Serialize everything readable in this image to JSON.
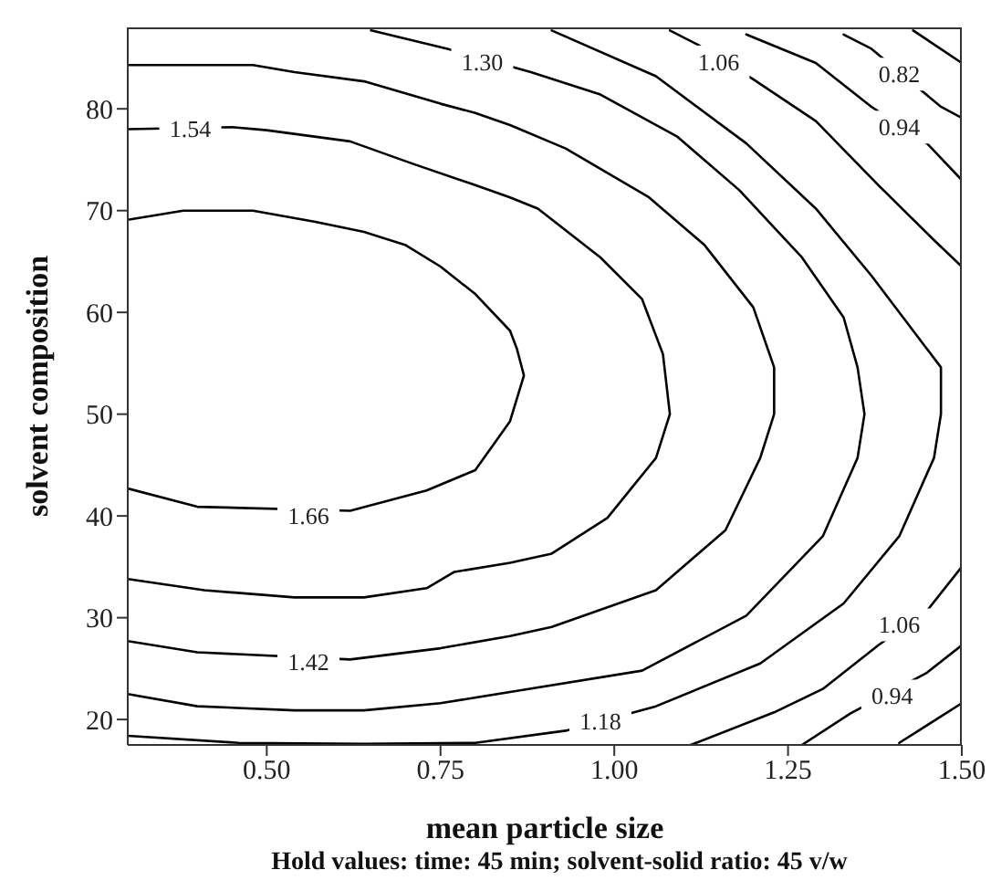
{
  "chart_data": {
    "type": "line",
    "xlabel": "mean particle size",
    "ylabel": "solvent composition",
    "xlim": [
      0.3,
      1.5
    ],
    "xticks": [
      {
        "value": 0.5,
        "label": "0.50"
      },
      {
        "value": 0.75,
        "label": "0.75"
      },
      {
        "value": 1.0,
        "label": "1.00"
      },
      {
        "value": 1.25,
        "label": "1.25"
      },
      {
        "value": 1.5,
        "label": "1.50"
      }
    ],
    "ylim": [
      17.5,
      88
    ],
    "yticks": [
      20,
      30,
      40,
      50,
      60,
      70,
      80
    ],
    "grid": false,
    "marker": "none",
    "line_style": "solid",
    "series": [
      {
        "color": "#000000",
        "x": [
          0.3,
          0.38,
          0.48,
          0.57,
          0.64,
          0.7,
          0.75,
          0.8,
          0.85,
          0.86,
          0.87,
          0.85,
          0.8,
          0.73,
          0.62,
          0.4,
          0.3
        ],
        "values": [
          69.1,
          70.0,
          70.0,
          68.9,
          67.9,
          66.6,
          64.5,
          61.8,
          58.2,
          56.4,
          53.8,
          49.3,
          44.5,
          42.5,
          40.5,
          40.9,
          42.7
        ]
      },
      {
        "color": "#000000",
        "x": [
          0.3,
          0.45,
          0.5,
          0.62,
          0.71,
          0.8,
          0.85,
          0.89,
          0.98,
          1.04,
          1.07,
          1.08,
          1.06,
          0.99,
          0.91,
          0.85,
          0.77,
          0.73,
          0.64,
          0.54,
          0.41,
          0.3
        ],
        "values": [
          78.0,
          78.2,
          77.9,
          76.8,
          74.6,
          72.5,
          71.3,
          70.2,
          65.4,
          61.3,
          55.9,
          50.0,
          45.7,
          39.8,
          36.3,
          35.4,
          34.5,
          32.9,
          32.0,
          32.0,
          32.7,
          33.8
        ]
      },
      {
        "color": "#000000",
        "x": [
          0.3,
          0.48,
          0.54,
          0.64,
          0.75,
          0.8,
          0.85,
          0.93,
          1.05,
          1.13,
          1.2,
          1.23,
          1.23,
          1.21,
          1.16,
          1.06,
          0.91,
          0.85,
          0.75,
          0.62,
          0.4,
          0.3
        ],
        "values": [
          84.3,
          84.3,
          83.6,
          82.7,
          80.5,
          79.6,
          78.4,
          76.1,
          71.3,
          66.6,
          60.5,
          54.6,
          50.0,
          45.7,
          38.6,
          32.7,
          29.1,
          28.2,
          27.0,
          25.9,
          26.6,
          27.7
        ]
      },
      {
        "color": "#000000",
        "x": [
          0.65,
          0.76,
          0.88,
          0.98,
          1.09,
          1.18,
          1.27,
          1.33,
          1.35,
          1.36,
          1.35,
          1.3,
          1.19,
          1.04,
          0.85,
          0.75,
          0.64,
          0.54,
          0.4,
          0.3
        ],
        "values": [
          87.7,
          85.9,
          83.6,
          81.4,
          77.3,
          72.0,
          65.4,
          59.5,
          54.6,
          50.0,
          45.7,
          38.0,
          30.2,
          24.8,
          22.7,
          21.6,
          20.9,
          20.9,
          21.3,
          22.5
        ]
      },
      {
        "color": "#000000",
        "x": [
          0.91,
          1.06,
          1.19,
          1.29,
          1.37,
          1.43,
          1.47,
          1.47,
          1.46,
          1.41,
          1.33,
          1.21,
          1.06,
          0.93,
          0.8,
          0.64,
          0.46,
          0.3
        ],
        "values": [
          87.7,
          83.2,
          76.6,
          70.2,
          63.6,
          58.2,
          54.6,
          50.0,
          45.7,
          38.0,
          31.4,
          25.5,
          21.3,
          18.9,
          17.7,
          17.6,
          17.7,
          18.4
        ]
      },
      {
        "color": "#000000",
        "x": [
          1.08,
          1.12,
          1.2,
          1.29,
          1.38,
          1.46,
          1.5
        ],
        "values": [
          87.7,
          86.3,
          82.9,
          78.8,
          72.5,
          67.1,
          64.5
        ]
      },
      {
        "color": "#000000",
        "x": [
          1.11,
          1.23,
          1.3,
          1.38,
          1.45,
          1.5
        ],
        "values": [
          17.5,
          20.7,
          23.0,
          27.3,
          30.7,
          35.0
        ]
      },
      {
        "color": "#000000",
        "x": [
          1.19,
          1.29,
          1.37,
          1.45,
          1.5
        ],
        "values": [
          87.3,
          84.5,
          80.2,
          76.6,
          73.0
        ]
      },
      {
        "color": "#000000",
        "x": [
          1.27,
          1.34,
          1.45,
          1.5
        ],
        "values": [
          17.5,
          20.6,
          24.6,
          27.3
        ]
      },
      {
        "color": "#000000",
        "x": [
          1.33,
          1.37,
          1.47,
          1.5
        ],
        "values": [
          87.3,
          85.9,
          80.2,
          79.1
        ]
      },
      {
        "color": "#000000",
        "x": [
          1.41,
          1.5
        ],
        "values": [
          17.7,
          21.6
        ]
      },
      {
        "color": "#000000",
        "x": [
          1.43,
          1.5
        ],
        "values": [
          87.7,
          84.5
        ]
      }
    ],
    "annotations": [
      {
        "text": "1.66",
        "x": 0.56,
        "y": 40.0
      },
      {
        "text": "1.54",
        "x": 0.39,
        "y": 78.0
      },
      {
        "text": "1.42",
        "x": 0.56,
        "y": 25.7
      },
      {
        "text": "1.30",
        "x": 0.81,
        "y": 84.6
      },
      {
        "text": "1.18",
        "x": 0.98,
        "y": 19.8
      },
      {
        "text": "1.06",
        "x": 1.15,
        "y": 84.6
      },
      {
        "text": "1.06",
        "x": 1.41,
        "y": 29.3
      },
      {
        "text": "0.94",
        "x": 1.41,
        "y": 78.2
      },
      {
        "text": "0.94",
        "x": 1.4,
        "y": 22.3
      },
      {
        "text": "0.82",
        "x": 1.41,
        "y": 83.4
      },
      "Hold values: time: 45 min; solvent-solid ratio: 45 v/w"
    ]
  }
}
